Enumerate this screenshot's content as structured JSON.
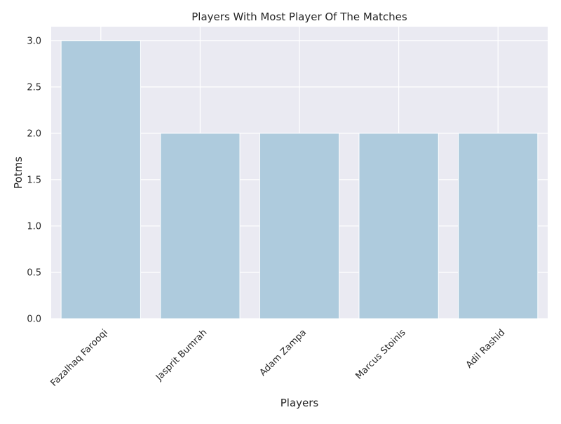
{
  "chart_data": {
    "type": "bar",
    "title": "Players With Most Player Of The Matches",
    "xlabel": "Players",
    "ylabel": "Potms",
    "categories": [
      "Fazalhaq Farooqi",
      "Jasprit Bumrah",
      "Adam Zampa",
      "Marcus Stoinis",
      "Adil Rashid"
    ],
    "values": [
      3,
      2,
      2,
      2,
      2
    ],
    "ylim": [
      0,
      3.15
    ],
    "yticks": [
      "0.0",
      "0.5",
      "1.0",
      "1.5",
      "2.0",
      "2.5",
      "3.0"
    ],
    "grid": true,
    "colors": {
      "bar": "#aecbdd",
      "plot_background": "#eaeaf2",
      "grid": "#ffffff"
    }
  }
}
